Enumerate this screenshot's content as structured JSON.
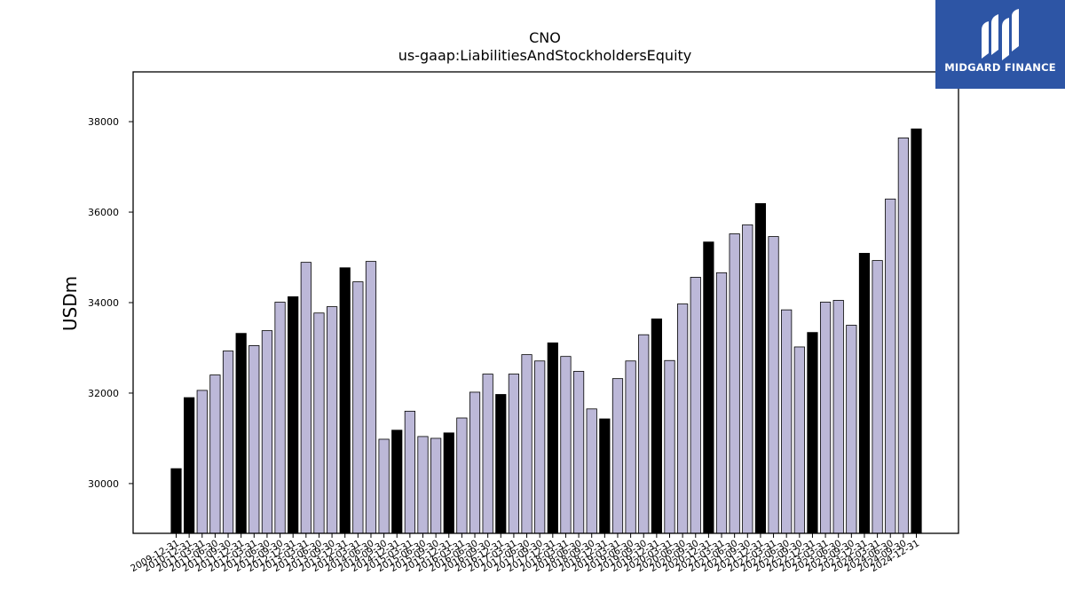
{
  "chart_data": {
    "type": "bar",
    "title": "CNO",
    "subtitle": "us-gaap:LiabilitiesAndStockholdersEquity",
    "ylabel": "USDm",
    "xlabel": "",
    "ylim": [
      28900,
      39100
    ],
    "yticks": [
      30000,
      32000,
      34000,
      36000,
      38000
    ],
    "colors": {
      "year_end": "#000000",
      "quarter": "#bcb8d8",
      "edge": "#000000"
    },
    "categories": [
      "2009-12-31",
      "2010-12-31",
      "2011-03-31",
      "2011-06-30",
      "2011-09-30",
      "2011-12-31",
      "2012-03-31",
      "2012-06-30",
      "2012-09-30",
      "2012-12-31",
      "2013-03-31",
      "2013-06-30",
      "2013-09-30",
      "2013-12-31",
      "2014-03-31",
      "2014-06-30",
      "2014-09-30",
      "2014-12-31",
      "2015-03-31",
      "2015-06-30",
      "2015-09-30",
      "2015-12-31",
      "2016-03-31",
      "2016-06-30",
      "2016-09-30",
      "2016-12-31",
      "2017-03-31",
      "2017-06-30",
      "2017-09-30",
      "2017-12-31",
      "2018-03-31",
      "2018-06-30",
      "2018-09-30",
      "2018-12-31",
      "2019-03-31",
      "2019-06-30",
      "2019-09-30",
      "2019-12-31",
      "2020-03-31",
      "2020-06-30",
      "2020-09-30",
      "2020-12-31",
      "2021-03-31",
      "2021-06-30",
      "2021-09-30",
      "2021-12-31",
      "2022-03-31",
      "2022-06-30",
      "2022-09-30",
      "2022-12-31",
      "2023-03-31",
      "2023-06-30",
      "2023-09-30",
      "2023-12-31",
      "2024-03-31",
      "2024-06-30",
      "2024-09-30",
      "2024-12-31"
    ],
    "values": [
      30330,
      31900,
      32060,
      32400,
      32930,
      33320,
      33050,
      33380,
      34010,
      34130,
      34890,
      33770,
      33910,
      34770,
      34460,
      34910,
      30980,
      31180,
      31600,
      31040,
      31000,
      31120,
      31450,
      32020,
      32420,
      31970,
      32420,
      32850,
      32710,
      33110,
      32810,
      32480,
      31650,
      31430,
      32320,
      32710,
      33290,
      33640,
      32720,
      33970,
      34560,
      35340,
      34660,
      35520,
      35720,
      36190,
      35460,
      33840,
      33020,
      33340,
      34010,
      34050,
      33500,
      35090,
      34930,
      36290,
      37640,
      37840
    ],
    "year_end": [
      true,
      true,
      false,
      false,
      false,
      true,
      false,
      false,
      false,
      true,
      false,
      false,
      false,
      true,
      false,
      false,
      false,
      true,
      false,
      false,
      false,
      true,
      false,
      false,
      false,
      true,
      false,
      false,
      false,
      true,
      false,
      false,
      false,
      true,
      false,
      false,
      false,
      true,
      false,
      false,
      false,
      true,
      false,
      false,
      false,
      true,
      false,
      false,
      false,
      true,
      false,
      false,
      false,
      true,
      false,
      false,
      false,
      true
    ]
  },
  "logo": {
    "text": "MIDGARD FINANCE"
  }
}
